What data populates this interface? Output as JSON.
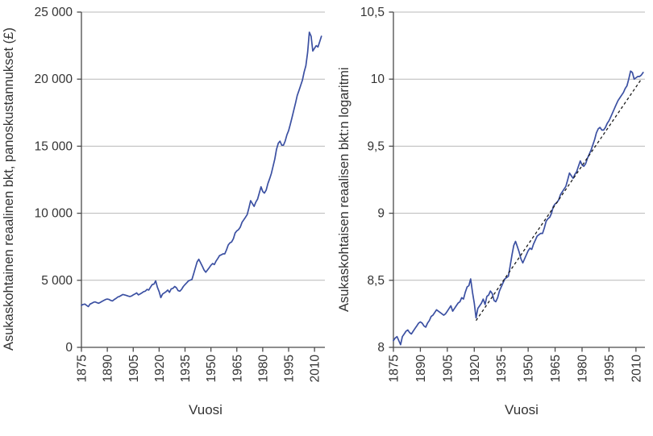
{
  "page": {
    "background": "#ffffff"
  },
  "palette": {
    "series_blue": "#3b50a2",
    "trend_black": "#1a1a1a",
    "axis_gray": "#4a4a4a",
    "grid_gray": "#b8b8b8",
    "text_gray": "#333333"
  },
  "chart_data": [
    {
      "type": "line",
      "title": "",
      "xlabel": "Vuosi",
      "ylabel": "Asukaskohtainen reaalinen bkt, panoskustannukset (£)",
      "xlim": [
        1875,
        2016
      ],
      "ylim": [
        0,
        25000
      ],
      "grid": true,
      "legend": false,
      "xticks": [
        1875,
        1890,
        1905,
        1920,
        1935,
        1950,
        1965,
        1980,
        1995,
        2010
      ],
      "yticks": [
        0,
        5000,
        10000,
        15000,
        20000,
        25000
      ],
      "ytick_labels": [
        "0",
        "5 000",
        "10 000",
        "15 000",
        "20 000",
        "25 000"
      ],
      "x": [
        1875,
        1876,
        1877,
        1878,
        1879,
        1880,
        1881,
        1882,
        1883,
        1884,
        1885,
        1886,
        1887,
        1888,
        1889,
        1890,
        1891,
        1892,
        1893,
        1894,
        1895,
        1896,
        1897,
        1898,
        1899,
        1900,
        1901,
        1902,
        1903,
        1904,
        1905,
        1906,
        1907,
        1908,
        1909,
        1910,
        1911,
        1912,
        1913,
        1914,
        1915,
        1916,
        1917,
        1918,
        1919,
        1920,
        1921,
        1922,
        1923,
        1924,
        1925,
        1926,
        1927,
        1928,
        1929,
        1930,
        1931,
        1932,
        1933,
        1934,
        1935,
        1936,
        1937,
        1938,
        1939,
        1940,
        1941,
        1942,
        1943,
        1944,
        1945,
        1946,
        1947,
        1948,
        1949,
        1950,
        1951,
        1952,
        1953,
        1954,
        1955,
        1956,
        1957,
        1958,
        1959,
        1960,
        1961,
        1962,
        1963,
        1964,
        1965,
        1966,
        1967,
        1968,
        1969,
        1970,
        1971,
        1972,
        1973,
        1974,
        1975,
        1976,
        1977,
        1978,
        1979,
        1980,
        1981,
        1982,
        1983,
        1984,
        1985,
        1986,
        1987,
        1988,
        1989,
        1990,
        1991,
        1992,
        1993,
        1994,
        1995,
        1996,
        1997,
        1998,
        1999,
        2000,
        2001,
        2002,
        2003,
        2004,
        2005,
        2006,
        2007,
        2008,
        2009,
        2010,
        2011,
        2012,
        2013,
        2014
      ],
      "series": [
        {
          "name": "Asukaskohtainen reaalinen bkt",
          "color": "#3b50a2",
          "line_style": "solid",
          "values": [
            3130,
            3200,
            3230,
            3130,
            3040,
            3230,
            3290,
            3360,
            3390,
            3330,
            3290,
            3360,
            3430,
            3500,
            3570,
            3600,
            3570,
            3500,
            3460,
            3570,
            3640,
            3750,
            3790,
            3870,
            3940,
            3910,
            3870,
            3830,
            3790,
            3830,
            3910,
            3980,
            4060,
            3910,
            3980,
            4060,
            4150,
            4190,
            4320,
            4270,
            4490,
            4680,
            4720,
            4960,
            4490,
            4150,
            3710,
            3980,
            4060,
            4150,
            4270,
            4100,
            4360,
            4400,
            4540,
            4450,
            4230,
            4190,
            4320,
            4540,
            4680,
            4820,
            4960,
            5010,
            5060,
            5480,
            5940,
            6370,
            6570,
            6310,
            6060,
            5770,
            5600,
            5770,
            5940,
            6120,
            6250,
            6180,
            6440,
            6630,
            6840,
            6900,
            6970,
            6970,
            7260,
            7630,
            7790,
            7860,
            8100,
            8520,
            8690,
            8780,
            8960,
            9320,
            9510,
            9700,
            9900,
            10400,
            10940,
            10720,
            10510,
            10830,
            11050,
            11500,
            11970,
            11620,
            11500,
            11730,
            12210,
            12580,
            12970,
            13500,
            14050,
            14770,
            15220,
            15370,
            15070,
            15070,
            15370,
            15850,
            16160,
            16650,
            17160,
            17680,
            18220,
            18780,
            19160,
            19540,
            19940,
            20540,
            21000,
            22000,
            23500,
            23200,
            22100,
            22300,
            22500,
            22400,
            22800,
            23200
          ]
        }
      ]
    },
    {
      "type": "line",
      "title": "",
      "xlabel": "Vuosi",
      "ylabel": "Asukaskohtaisen reaalisen bkt:n logaritmi",
      "xlim": [
        1875,
        2015
      ],
      "ylim": [
        8,
        10.5
      ],
      "grid": true,
      "legend": false,
      "xticks": [
        1875,
        1890,
        1905,
        1920,
        1935,
        1950,
        1965,
        1980,
        1995,
        2010
      ],
      "yticks": [
        8,
        8.5,
        9,
        9.5,
        10,
        10.5
      ],
      "ytick_labels": [
        "8",
        "8,5",
        "9",
        "9,5",
        "10",
        "10,5"
      ],
      "x": [
        1875,
        1876,
        1877,
        1878,
        1879,
        1880,
        1881,
        1882,
        1883,
        1884,
        1885,
        1886,
        1887,
        1888,
        1889,
        1890,
        1891,
        1892,
        1893,
        1894,
        1895,
        1896,
        1897,
        1898,
        1899,
        1900,
        1901,
        1902,
        1903,
        1904,
        1905,
        1906,
        1907,
        1908,
        1909,
        1910,
        1911,
        1912,
        1913,
        1914,
        1915,
        1916,
        1917,
        1918,
        1919,
        1920,
        1921,
        1922,
        1923,
        1924,
        1925,
        1926,
        1927,
        1928,
        1929,
        1930,
        1931,
        1932,
        1933,
        1934,
        1935,
        1936,
        1937,
        1938,
        1939,
        1940,
        1941,
        1942,
        1943,
        1944,
        1945,
        1946,
        1947,
        1948,
        1949,
        1950,
        1951,
        1952,
        1953,
        1954,
        1955,
        1956,
        1957,
        1958,
        1959,
        1960,
        1961,
        1962,
        1963,
        1964,
        1965,
        1966,
        1967,
        1968,
        1969,
        1970,
        1971,
        1972,
        1973,
        1974,
        1975,
        1976,
        1977,
        1978,
        1979,
        1980,
        1981,
        1982,
        1983,
        1984,
        1985,
        1986,
        1987,
        1988,
        1989,
        1990,
        1991,
        1992,
        1993,
        1994,
        1995,
        1996,
        1997,
        1998,
        1999,
        2000,
        2001,
        2002,
        2003,
        2004,
        2005,
        2006,
        2007,
        2008,
        2009,
        2010,
        2011,
        2012,
        2013,
        2014
      ],
      "series": [
        {
          "name": "Asukaskohtaisen reaalisen bkt:n logaritmi",
          "color": "#3b50a2",
          "line_style": "solid",
          "values": [
            8.05,
            8.07,
            8.08,
            8.05,
            8.02,
            8.08,
            8.1,
            8.12,
            8.13,
            8.11,
            8.1,
            8.12,
            8.14,
            8.16,
            8.18,
            8.19,
            8.18,
            8.16,
            8.15,
            8.18,
            8.2,
            8.23,
            8.24,
            8.26,
            8.28,
            8.27,
            8.26,
            8.25,
            8.24,
            8.25,
            8.27,
            8.29,
            8.31,
            8.27,
            8.29,
            8.31,
            8.33,
            8.34,
            8.37,
            8.36,
            8.41,
            8.45,
            8.46,
            8.51,
            8.41,
            8.33,
            8.22,
            8.29,
            8.31,
            8.33,
            8.36,
            8.32,
            8.38,
            8.39,
            8.42,
            8.4,
            8.35,
            8.34,
            8.37,
            8.42,
            8.45,
            8.48,
            8.51,
            8.52,
            8.53,
            8.61,
            8.69,
            8.76,
            8.79,
            8.75,
            8.71,
            8.66,
            8.63,
            8.66,
            8.69,
            8.72,
            8.74,
            8.73,
            8.77,
            8.8,
            8.83,
            8.84,
            8.85,
            8.85,
            8.89,
            8.94,
            8.96,
            8.97,
            9.0,
            9.05,
            9.07,
            9.08,
            9.1,
            9.14,
            9.16,
            9.18,
            9.2,
            9.25,
            9.3,
            9.28,
            9.26,
            9.29,
            9.31,
            9.35,
            9.39,
            9.36,
            9.35,
            9.37,
            9.41,
            9.44,
            9.47,
            9.51,
            9.55,
            9.6,
            9.63,
            9.64,
            9.62,
            9.62,
            9.64,
            9.67,
            9.69,
            9.72,
            9.75,
            9.78,
            9.81,
            9.84,
            9.86,
            9.88,
            9.9,
            9.93,
            9.95,
            10.0,
            10.06,
            10.05,
            10.0,
            10.01,
            10.02,
            10.02,
            10.03,
            10.05
          ]
        }
      ],
      "trend_line": {
        "name": "lineaarinen trendi",
        "color": "#1a1a1a",
        "line_style": "dashed",
        "x": [
          1921,
          2013
        ],
        "values": [
          8.2,
          10.0
        ]
      }
    }
  ]
}
